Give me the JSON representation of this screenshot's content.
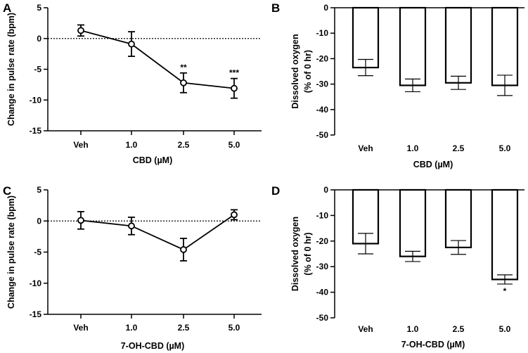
{
  "chart_data": [
    {
      "panel": "A",
      "type": "line",
      "categories": [
        "Veh",
        "1.0",
        "2.5",
        "5.0"
      ],
      "values": [
        1.3,
        -0.9,
        -7.2,
        -8.1
      ],
      "errors": [
        0.9,
        2.0,
        1.6,
        1.6
      ],
      "significance": [
        "",
        "",
        "**",
        "***"
      ],
      "xlabel": "CBD (µM)",
      "ylabel": "Change in pulse rate (bpm)",
      "ylim": [
        -15,
        5
      ],
      "yticks": [
        "5",
        "0",
        "-5",
        "-10",
        "-15"
      ],
      "reference_line": 0
    },
    {
      "panel": "B",
      "type": "bar",
      "categories": [
        "Veh",
        "1.0",
        "2.5",
        "5.0"
      ],
      "values": [
        -23.5,
        -30.5,
        -29.5,
        -30.5
      ],
      "errors": [
        3.2,
        2.5,
        2.6,
        4.0
      ],
      "significance": [
        "",
        "",
        "",
        ""
      ],
      "xlabel": "CBD (µM)",
      "ylabel": "Dissolved oxygen",
      "ylabel2": "(% of 0 hr)",
      "ylim": [
        -50,
        0
      ],
      "yticks": [
        "0",
        "-10",
        "-20",
        "-30",
        "-40",
        "-50"
      ]
    },
    {
      "panel": "C",
      "type": "line",
      "categories": [
        "Veh",
        "1.0",
        "2.5",
        "5.0"
      ],
      "values": [
        0.1,
        -0.8,
        -4.6,
        1.0
      ],
      "errors": [
        1.4,
        1.4,
        1.8,
        0.8
      ],
      "significance": [
        "",
        "",
        "",
        ""
      ],
      "xlabel": "7-OH-CBD (µM)",
      "ylabel": "Change in pulse rate (bpm)",
      "ylim": [
        -15,
        5
      ],
      "yticks": [
        "5",
        "0",
        "-5",
        "-10",
        "-15"
      ],
      "reference_line": 0
    },
    {
      "panel": "D",
      "type": "bar",
      "categories": [
        "Veh",
        "1.0",
        "2.5",
        "5.0"
      ],
      "values": [
        -21.0,
        -26.0,
        -22.5,
        -35.0
      ],
      "errors": [
        4.0,
        2.0,
        2.7,
        1.8
      ],
      "significance": [
        "",
        "",
        "",
        "*"
      ],
      "xlabel": "7-OH-CBD (µM)",
      "ylabel": "Dissolved oxygen",
      "ylabel2": "(% of 0 hr)",
      "ylim": [
        -50,
        0
      ],
      "yticks": [
        "0",
        "-10",
        "-20",
        "-30",
        "-40",
        "-50"
      ]
    }
  ]
}
